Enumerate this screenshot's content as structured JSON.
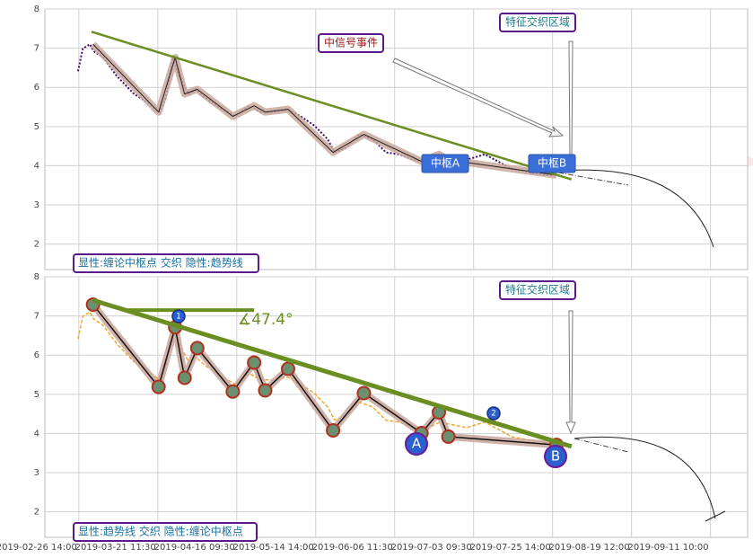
{
  "chart_data": [
    {
      "type": "line",
      "ylim": [
        1.35,
        8
      ],
      "yticks": [
        2,
        3,
        4,
        5,
        6,
        7,
        8
      ],
      "grid": true,
      "series": [
        {
          "color": "#3d0a6e",
          "style": "dotted",
          "width": 2,
          "x": [
            -0.01,
            0.05,
            0.14,
            0.19,
            0.31,
            0.48,
            0.7,
            0.88,
            1.02,
            1.1,
            1.19,
            1.27,
            1.39,
            1.48,
            1.61,
            1.78,
            1.98,
            2.16,
            2.3,
            2.47,
            2.64,
            2.81,
            2.98,
            3.15,
            3.24,
            3.38,
            3.55,
            3.72,
            3.89,
            4.06,
            4.23,
            4.4,
            4.57,
            4.74,
            4.91,
            5.14,
            5.31,
            5.48,
            5.7,
            5.93,
            6.05
          ],
          "values": [
            6.41,
            6.99,
            7.1,
            6.92,
            6.76,
            6.29,
            5.83,
            5.6,
            5.37,
            5.72,
            6.76,
            6.29,
            5.83,
            5.95,
            5.72,
            5.49,
            5.26,
            5.53,
            5.37,
            5.37,
            5.44,
            5.26,
            5.03,
            4.68,
            4.34,
            4.45,
            4.8,
            4.68,
            4.34,
            4.29,
            4.15,
            4.11,
            4.29,
            4.22,
            4.15,
            4.29,
            4.11,
            3.92,
            3.83,
            3.76,
            3.76
          ]
        },
        {
          "color": "#222222",
          "style": "solid",
          "width": 1,
          "halo": "#c9a89c",
          "x": [
            0.18,
            1.01,
            1.22,
            1.34,
            1.5,
            1.95,
            2.22,
            2.36,
            2.65,
            3.22,
            3.61,
            4.34,
            4.56,
            4.68,
            6.05
          ],
          "values": [
            7.1,
            5.37,
            6.76,
            5.83,
            5.95,
            5.26,
            5.53,
            5.37,
            5.44,
            4.34,
            4.8,
            4.11,
            4.29,
            4.15,
            3.76
          ]
        },
        {
          "color": "#6b8e23",
          "style": "solid",
          "width": 2.5,
          "x": [
            0.16,
            6.24
          ],
          "values": [
            7.42,
            3.65
          ]
        }
      ],
      "annotations": [
        "中信号事件",
        "特征交织区域",
        "中枢A",
        "中枢B"
      ],
      "caption": "显性:缠论中枢点 交织 隐性:趋势线"
    },
    {
      "type": "line",
      "ylim": [
        1.35,
        8
      ],
      "yticks": [
        2,
        3,
        4,
        5,
        6,
        7,
        8
      ],
      "grid": true,
      "xlim": [
        -0.43,
        8.47
      ],
      "xticks": [
        {
          "value": 0,
          "label": "2019-02-26 14:00"
        },
        {
          "value": 1,
          "label": "2019-03-21 11:30"
        },
        {
          "value": 2,
          "label": "2019-04-16 09:30"
        },
        {
          "value": 3,
          "label": "2019-05-14 14:00"
        },
        {
          "value": 4,
          "label": "2019-06-06 11:30"
        },
        {
          "value": 5,
          "label": "2019-07-03 09:30"
        },
        {
          "value": 6,
          "label": "2019-07-25 14:00"
        },
        {
          "value": 7,
          "label": "2019-08-19 12:00"
        },
        {
          "value": 8,
          "label": "2019-09-11 10:00"
        }
      ],
      "series": [
        {
          "color": "#f0a830",
          "style": "dashed",
          "width": 1.5,
          "x": [
            -0.01,
            0.05,
            0.14,
            0.19,
            0.31,
            0.48,
            0.7,
            0.88,
            1.02,
            1.1,
            1.19,
            1.27,
            1.39,
            1.48,
            1.61,
            1.78,
            1.98,
            2.16,
            2.3,
            2.47,
            2.64,
            2.81,
            2.98,
            3.15,
            3.24,
            3.38,
            3.55,
            3.72,
            3.89,
            4.06,
            4.23,
            4.4,
            4.57,
            4.74,
            4.91,
            5.14,
            5.31,
            5.48,
            5.7,
            5.93,
            6.05
          ],
          "values": [
            6.41,
            6.99,
            7.1,
            6.92,
            6.76,
            6.29,
            5.83,
            5.6,
            5.37,
            5.72,
            6.76,
            6.29,
            5.83,
            5.95,
            5.72,
            5.49,
            5.26,
            5.53,
            5.37,
            5.37,
            5.44,
            5.26,
            5.03,
            4.68,
            4.34,
            4.45,
            4.8,
            4.68,
            4.34,
            4.29,
            4.15,
            4.11,
            4.29,
            4.22,
            4.15,
            4.29,
            4.11,
            3.92,
            3.83,
            3.76,
            3.76
          ]
        },
        {
          "color": "#111111",
          "style": "solid",
          "width": 1.5,
          "halo": "#c9a59b",
          "markers": true,
          "x": [
            0.18,
            1.01,
            1.22,
            1.34,
            1.5,
            1.95,
            2.22,
            2.36,
            2.65,
            3.22,
            3.61,
            4.34,
            4.56,
            4.68,
            6.05
          ],
          "values": [
            7.29,
            5.19,
            6.71,
            5.42,
            6.18,
            5.07,
            5.81,
            5.1,
            5.65,
            4.08,
            5.03,
            4.01,
            4.54,
            3.92,
            3.71
          ]
        },
        {
          "color": "#6b8e23",
          "style": "solid",
          "width": 5,
          "x": [
            0.18,
            6.24
          ],
          "values": [
            7.4,
            3.67
          ]
        },
        {
          "color": "#6b8e23",
          "style": "solid",
          "width": 4,
          "x": [
            0.59,
            2.22
          ],
          "values": [
            7.15,
            7.15
          ]
        }
      ],
      "annotations": [
        "特征交织区域",
        "∡47.4°",
        "1",
        "2",
        "A",
        "B"
      ],
      "caption": "显性:趋势线 交织 隐性:缠论中枢点"
    }
  ]
}
